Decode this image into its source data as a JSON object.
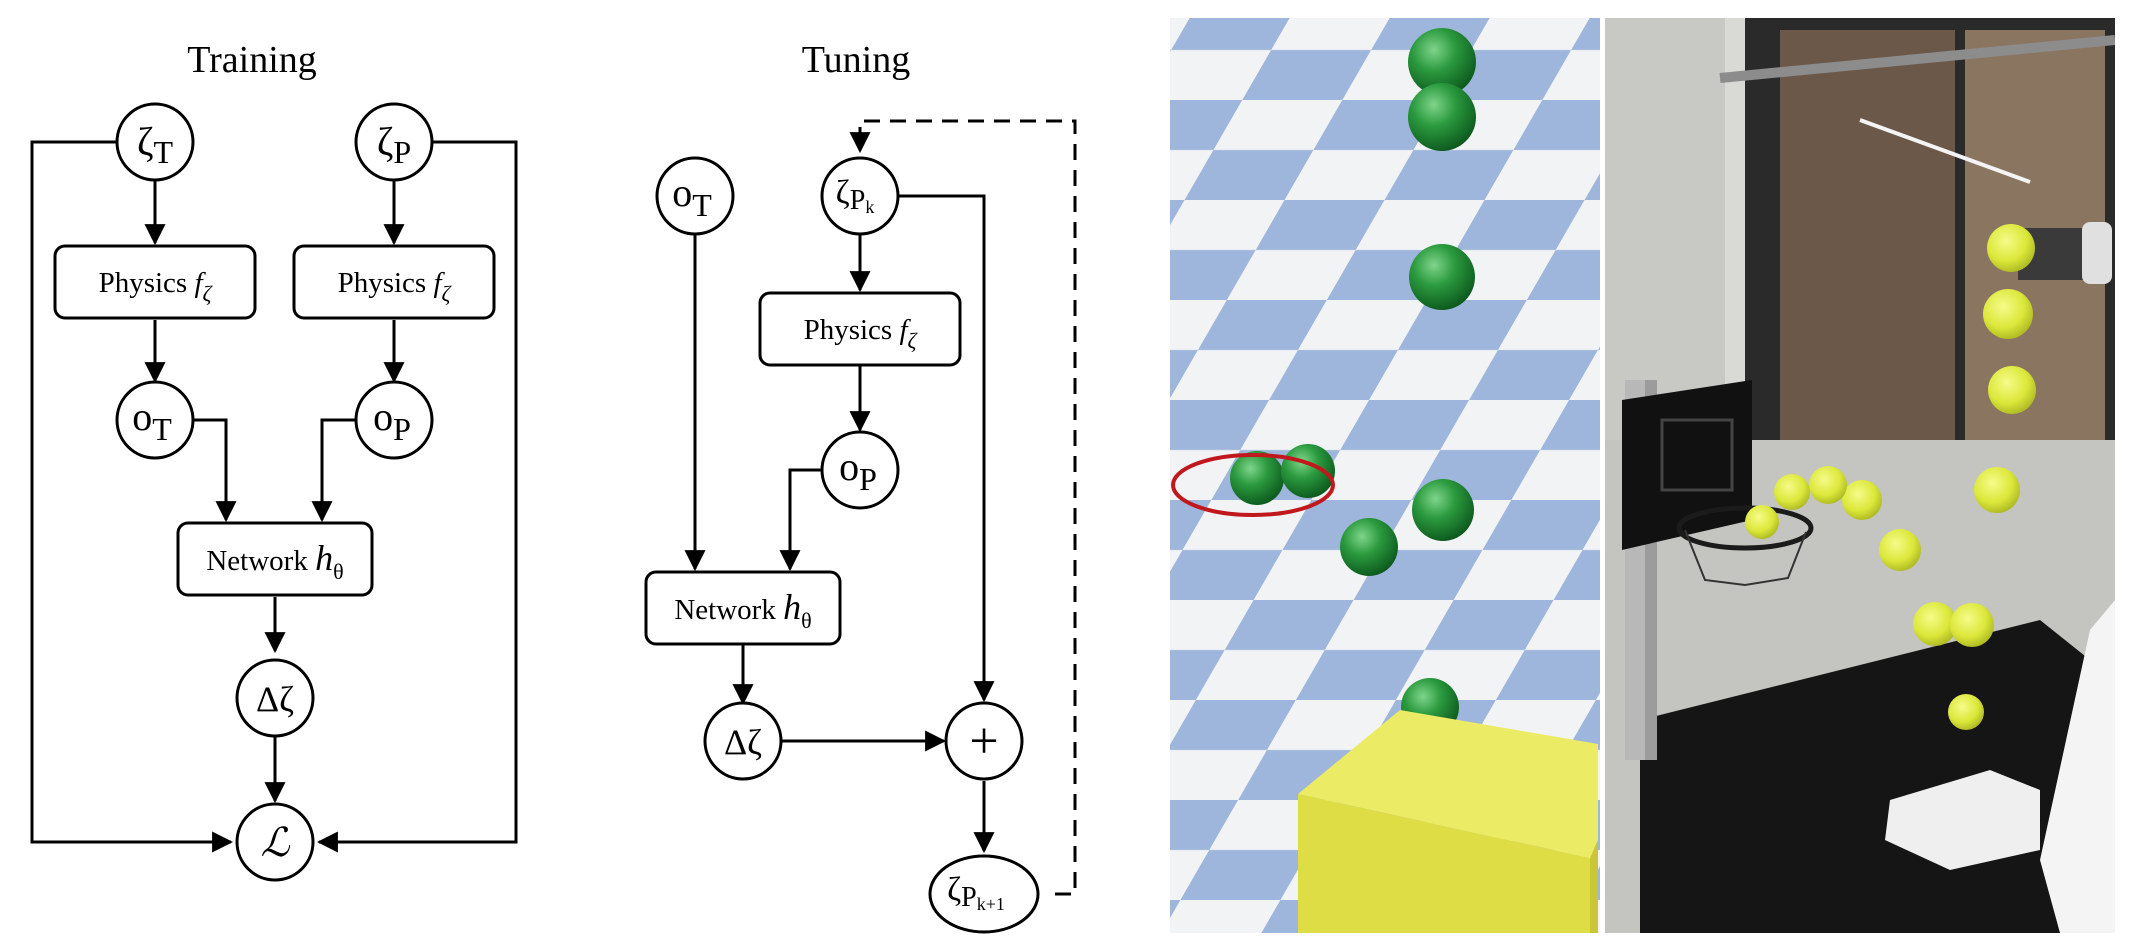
{
  "training": {
    "title": "Training",
    "zeta_t": {
      "base": "ζ",
      "sub": "T"
    },
    "zeta_p": {
      "base": "ζ",
      "sub": "P"
    },
    "physics_left": {
      "text": "Physics ",
      "f": "f",
      "sub": "ζ"
    },
    "physics_right": {
      "text": "Physics ",
      "f": "f",
      "sub": "ζ"
    },
    "o_t": {
      "base": "o",
      "sub": "T"
    },
    "o_p": {
      "base": "o",
      "sub": "P"
    },
    "network": {
      "text": "Network ",
      "h": "h",
      "sub": "θ"
    },
    "delta": "Δζ",
    "loss": "ℒ"
  },
  "tuning": {
    "title": "Tuning",
    "o_t": {
      "base": "o",
      "sub": "T"
    },
    "zeta_pk": {
      "base": "ζ",
      "sub": "P",
      "subsub": "k"
    },
    "physics": {
      "text": "Physics ",
      "f": "f",
      "sub": "ζ"
    },
    "o_p": {
      "base": "o",
      "sub": "P"
    },
    "network": {
      "text": "Network ",
      "h": "h",
      "sub": "θ"
    },
    "delta": "Δζ",
    "plus": "+",
    "zeta_pk1": {
      "base": "ζ",
      "sub": "P",
      "subsub": "k+1"
    }
  },
  "colors": {
    "floor_blue": "#9fb6dc",
    "floor_white": "#f2f3f5",
    "ball_green": "#2b9a3e",
    "box_yellow": "#e2de4a",
    "target_ring": "#c0181d",
    "tennis_ball": "#e4ef3a"
  }
}
